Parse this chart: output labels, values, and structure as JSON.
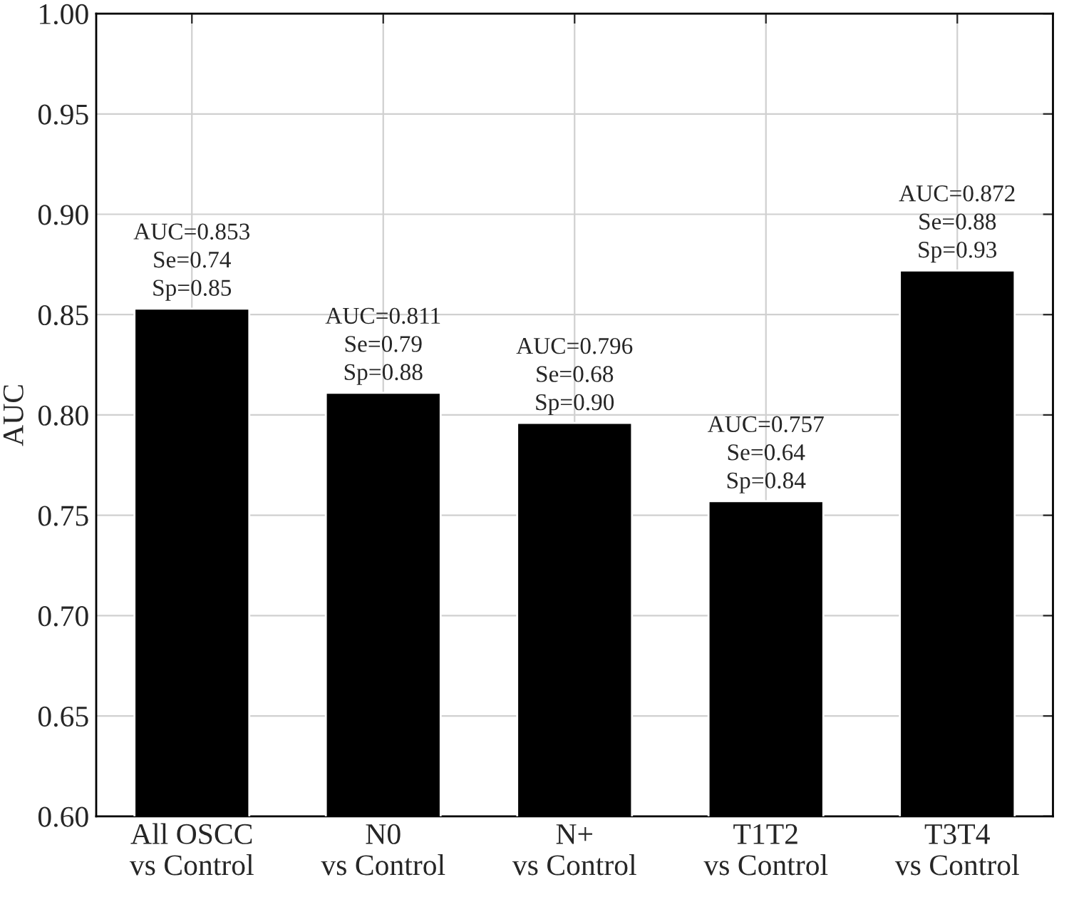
{
  "chart_data": {
    "type": "bar",
    "ylabel": "AUC",
    "categories": [
      "All OSCC\nvs Control",
      "N0\nvs Control",
      "N+\nvs Control",
      "T1T2\nvs Control",
      "T3T4\nvs Control"
    ],
    "values": [
      0.853,
      0.811,
      0.796,
      0.757,
      0.872
    ],
    "value_labels": [
      "AUC=0.853\nSe=0.74\nSp=0.85",
      "AUC=0.811\nSe=0.79\nSp=0.88",
      "AUC=0.796\nSe=0.68\nSp=0.90",
      "AUC=0.757\nSe=0.64\nSp=0.84",
      "AUC=0.872\nSe=0.88\nSp=0.93"
    ],
    "color": "#000000",
    "ylim": [
      0.6,
      1.0
    ],
    "yticks": [
      "0.60",
      "0.65",
      "0.70",
      "0.75",
      "0.80",
      "0.85",
      "0.90",
      "0.95",
      "1.00"
    ],
    "grid": true
  }
}
